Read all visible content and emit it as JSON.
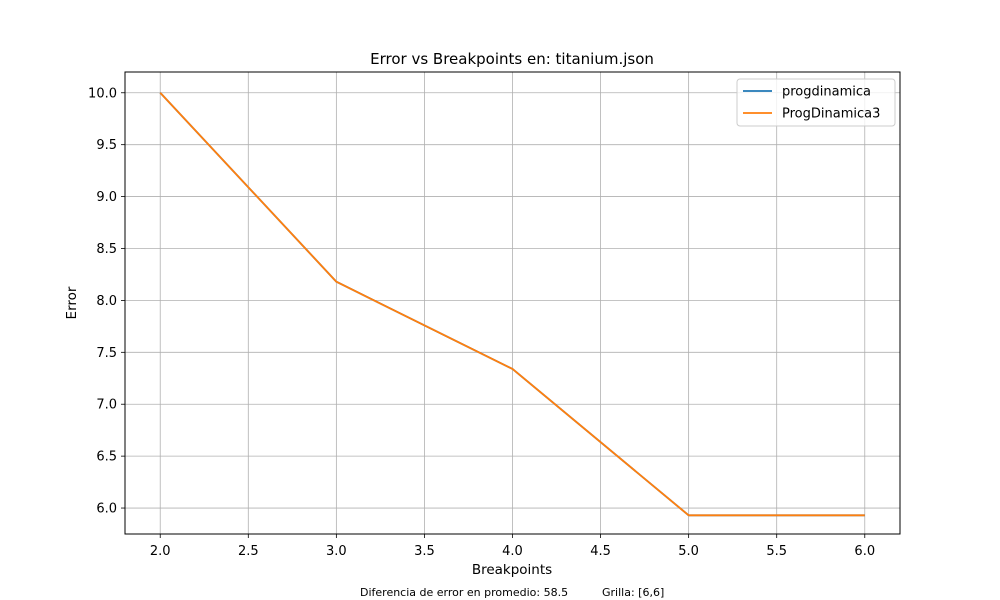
{
  "chart_data": {
    "type": "line",
    "title": "Error vs Breakpoints en: titanium.json",
    "xlabel": "Breakpoints",
    "ylabel": "Error",
    "xlim": [
      1.8,
      6.2
    ],
    "ylim": [
      5.75,
      10.2
    ],
    "xticks": [
      2.0,
      2.5,
      3.0,
      3.5,
      4.0,
      4.5,
      5.0,
      5.5,
      6.0
    ],
    "xtick_labels": [
      "2.0",
      "2.5",
      "3.0",
      "3.5",
      "4.0",
      "4.5",
      "5.0",
      "5.5",
      "6.0"
    ],
    "yticks": [
      6.0,
      6.5,
      7.0,
      7.5,
      8.0,
      8.5,
      9.0,
      9.5,
      10.0
    ],
    "ytick_labels": [
      "6.0",
      "6.5",
      "7.0",
      "7.5",
      "8.0",
      "8.5",
      "9.0",
      "9.5",
      "10.0"
    ],
    "grid": true,
    "legend_position": "top-right",
    "x": [
      2,
      3,
      4,
      5,
      6
    ],
    "series": [
      {
        "name": "progdinamica",
        "color": "#1f77b4",
        "values": [
          10.0,
          8.18,
          7.34,
          5.93,
          5.93
        ]
      },
      {
        "name": "ProgDinamica3",
        "color": "#ff7f0e",
        "values": [
          10.0,
          8.18,
          7.34,
          5.93,
          5.93
        ]
      }
    ]
  },
  "footer": {
    "diferencia": "Diferencia de error en promedio: 58.5",
    "grilla": "Grilla: [6,6]"
  }
}
